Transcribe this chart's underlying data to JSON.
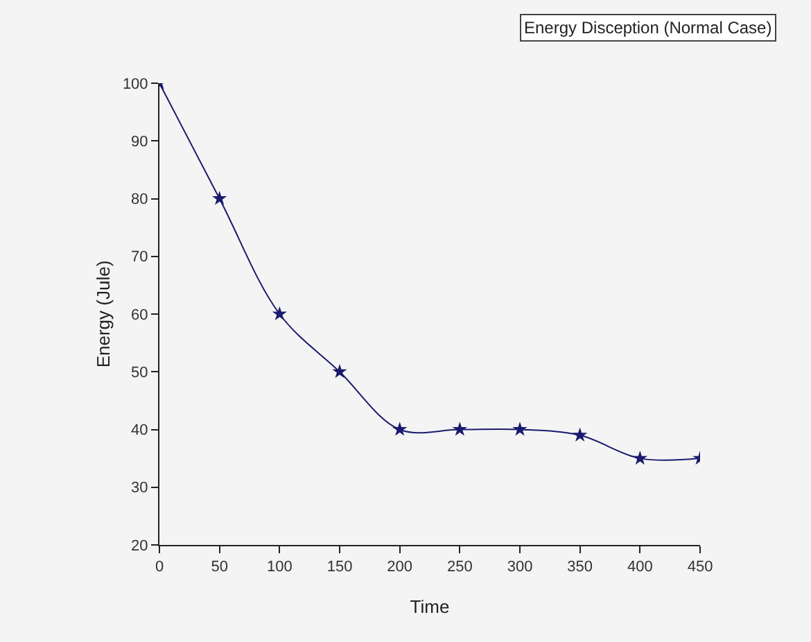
{
  "chart_data": {
    "type": "line",
    "title": "Energy Disception (Normal Case)",
    "xlabel": "Time",
    "ylabel": "Energy (Jule)",
    "x": [
      0,
      50,
      100,
      150,
      200,
      250,
      300,
      350,
      400,
      450
    ],
    "series": [
      {
        "color": "#1a1a6e",
        "values": [
          100,
          80,
          60,
          50,
          40,
          40,
          40,
          39,
          35,
          35
        ]
      }
    ],
    "xlim": [
      0,
      450
    ],
    "xticks": [
      0,
      50,
      100,
      150,
      200,
      250,
      300,
      350,
      400,
      450
    ],
    "ylim": [
      20,
      100
    ],
    "yticks": [
      20,
      30,
      40,
      50,
      60,
      70,
      80,
      90,
      100
    ],
    "grid": false,
    "marker": "star",
    "line_style": "solid"
  }
}
